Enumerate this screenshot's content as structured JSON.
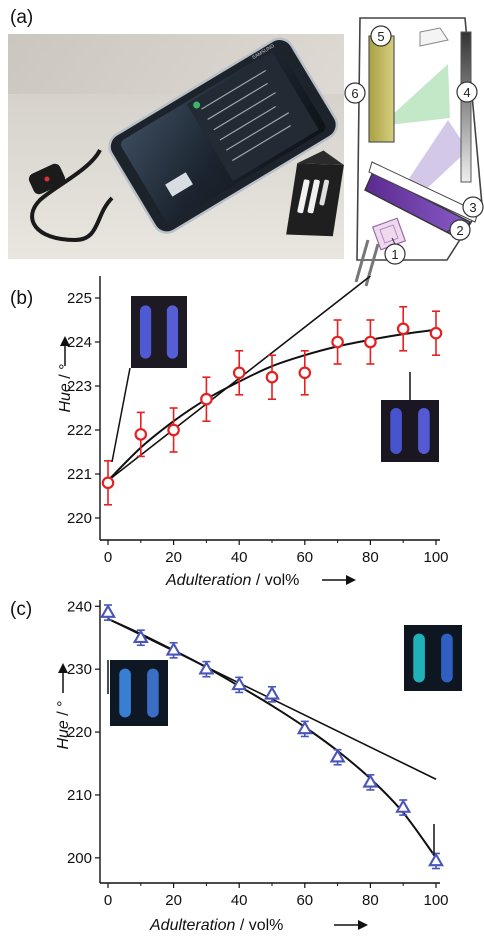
{
  "figure": {
    "panel_labels": [
      "(a)",
      "(b)",
      "(c)"
    ],
    "schematic_numbers": [
      "1",
      "2",
      "3",
      "4",
      "5",
      "6"
    ],
    "phone_screen_text": "SAMSUNG"
  },
  "chart_data": [
    {
      "panel": "(b)",
      "type": "scatter",
      "xlabel_italic": "Adulteration",
      "xlabel_unit": " / vol%",
      "ylabel_italic": "Hue",
      "ylabel_unit": " / °",
      "xlim": [
        0,
        100
      ],
      "ylim": [
        219.5,
        225.5
      ],
      "xticks": [
        "0",
        "20",
        "40",
        "60",
        "80",
        "100"
      ],
      "yticks": [
        "220",
        "221",
        "222",
        "223",
        "224",
        "225"
      ],
      "marker": "circle",
      "marker_color": "#e62020",
      "series": [
        {
          "x": [
            0,
            10,
            20,
            30,
            40,
            50,
            60,
            70,
            80,
            90,
            100
          ],
          "y": [
            220.8,
            221.9,
            222.0,
            222.7,
            223.3,
            223.2,
            223.3,
            224.0,
            224.0,
            224.3,
            224.2
          ],
          "err": [
            0.5,
            0.5,
            0.5,
            0.5,
            0.5,
            0.5,
            0.5,
            0.5,
            0.5,
            0.5,
            0.5
          ]
        }
      ],
      "fit_curve": {
        "x": [
          0,
          10,
          20,
          30,
          40,
          50,
          60,
          70,
          80,
          90,
          100
        ],
        "y": [
          220.85,
          221.6,
          222.2,
          222.7,
          223.1,
          223.45,
          223.7,
          223.9,
          224.05,
          224.18,
          224.28
        ]
      },
      "tangent_line": {
        "x": [
          0,
          80
        ],
        "y": [
          220.85,
          225.5
        ]
      }
    },
    {
      "panel": "(c)",
      "type": "scatter",
      "xlabel_italic": "Adulteration",
      "xlabel_unit": " / vol%",
      "ylabel_italic": "Hue",
      "ylabel_unit": " / °",
      "xlim": [
        0,
        100
      ],
      "ylim": [
        196,
        241
      ],
      "xticks": [
        "0",
        "20",
        "40",
        "60",
        "80",
        "100"
      ],
      "yticks": [
        "200",
        "210",
        "220",
        "230",
        "240"
      ],
      "marker": "triangle",
      "marker_color": "#4a55b8",
      "series": [
        {
          "x": [
            0,
            10,
            20,
            30,
            40,
            50,
            60,
            70,
            80,
            90,
            100
          ],
          "y": [
            239.0,
            235.0,
            233.0,
            230.0,
            227.5,
            226.0,
            220.5,
            216.0,
            212.0,
            208.0,
            199.5
          ],
          "err": [
            1.2,
            1.2,
            1.2,
            1.2,
            1.2,
            1.2,
            1.2,
            1.2,
            1.2,
            1.2,
            1.2
          ]
        }
      ],
      "fit_curve": {
        "x": [
          0,
          10,
          20,
          30,
          40,
          50,
          60,
          70,
          80,
          90,
          100
        ],
        "y": [
          238.0,
          235.6,
          233.0,
          230.3,
          227.3,
          224.2,
          220.8,
          217.0,
          212.6,
          207.2,
          200.0
        ]
      },
      "tangent_line": {
        "x": [
          0,
          100
        ],
        "y": [
          238.0,
          212.5
        ]
      }
    }
  ]
}
